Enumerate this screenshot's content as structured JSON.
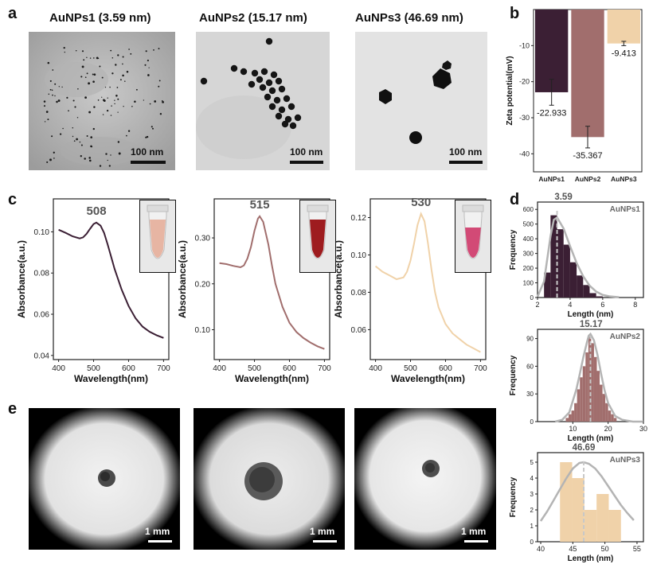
{
  "letters": {
    "a": "a",
    "b": "b",
    "c": "c",
    "d": "d",
    "e": "e"
  },
  "tem": [
    {
      "title": "AuNPs1 (3.59 nm)",
      "scale": "100 nm"
    },
    {
      "title": "AuNPs2 (15.17 nm)",
      "scale": "100 nm"
    },
    {
      "title": "AuNPs3 (46.69 nm)",
      "scale": "100 nm"
    }
  ],
  "dishes": [
    {
      "scale": "1 mm"
    },
    {
      "scale": "1 mm"
    },
    {
      "scale": "1 mm"
    }
  ],
  "colors": {
    "AuNPs1": "#3b1f34",
    "AuNPs2": "#a16e6d",
    "AuNPs3": "#f0d2a9",
    "fit_curve": "#b4b4b4"
  },
  "chart_data": [
    {
      "id": "zeta",
      "type": "bar",
      "ylabel": "Zeta potential(mV)",
      "categories": [
        "AuNPs1",
        "AuNPs2",
        "AuNPs3"
      ],
      "values": [
        -22.933,
        -35.367,
        -9.413
      ],
      "errors": [
        3.6,
        3.0,
        0.6
      ],
      "value_labels": [
        "-22.933",
        "-35.367",
        "-9.413"
      ],
      "ylim": [
        -45,
        0
      ],
      "yticks": [
        -10,
        -20,
        -30,
        -40
      ],
      "ytick_labels": [
        "-10",
        "-20",
        "-30",
        "-40"
      ]
    },
    {
      "id": "uv1",
      "type": "line",
      "xlabel": "Wavelength(nm)",
      "ylabel": "Absorbance(a.u.)",
      "peak_label": "508",
      "peak": [
        508,
        0.1045
      ],
      "xlim": [
        385,
        715
      ],
      "ylim": [
        0.038,
        0.116
      ],
      "xticks": [
        400,
        500,
        600,
        700
      ],
      "yticks": [
        0.04,
        0.06,
        0.08,
        0.1
      ],
      "ytick_labels": [
        "0.04",
        "0.06",
        "0.08",
        "0.10"
      ],
      "x": [
        400,
        420,
        440,
        460,
        470,
        480,
        490,
        500,
        508,
        520,
        530,
        540,
        550,
        560,
        580,
        600,
        620,
        640,
        660,
        680,
        700
      ],
      "y": [
        0.101,
        0.0995,
        0.0978,
        0.0968,
        0.0973,
        0.099,
        0.1015,
        0.1038,
        0.1045,
        0.103,
        0.0995,
        0.094,
        0.088,
        0.082,
        0.072,
        0.064,
        0.058,
        0.054,
        0.0515,
        0.0498,
        0.0485
      ]
    },
    {
      "id": "uv2",
      "type": "line",
      "xlabel": "Wavelength(nm)",
      "ylabel": "Absorbance(a.u.)",
      "peak_label": "515",
      "peak": [
        515,
        0.347
      ],
      "xlim": [
        385,
        715
      ],
      "ylim": [
        0.035,
        0.385
      ],
      "xticks": [
        400,
        500,
        600,
        700
      ],
      "yticks": [
        0.1,
        0.2,
        0.3
      ],
      "ytick_labels": [
        "0.10",
        "0.20",
        "0.30"
      ],
      "x": [
        400,
        420,
        440,
        460,
        470,
        480,
        490,
        500,
        510,
        515,
        525,
        540,
        550,
        560,
        580,
        600,
        620,
        640,
        660,
        680,
        700
      ],
      "y": [
        0.245,
        0.243,
        0.239,
        0.236,
        0.24,
        0.255,
        0.28,
        0.315,
        0.342,
        0.347,
        0.335,
        0.285,
        0.24,
        0.2,
        0.15,
        0.115,
        0.095,
        0.082,
        0.072,
        0.064,
        0.058
      ]
    },
    {
      "id": "uv3",
      "type": "line",
      "xlabel": "Wavelength(nm)",
      "ylabel": "Absorbance(a.u.)",
      "peak_label": "530",
      "peak": [
        530,
        0.122
      ],
      "xlim": [
        385,
        715
      ],
      "ylim": [
        0.044,
        0.13
      ],
      "xticks": [
        400,
        500,
        600,
        700
      ],
      "yticks": [
        0.06,
        0.08,
        0.1,
        0.12
      ],
      "ytick_labels": [
        "0.06",
        "0.08",
        "0.10",
        "0.12"
      ],
      "x": [
        400,
        420,
        440,
        460,
        480,
        490,
        500,
        510,
        520,
        530,
        540,
        550,
        560,
        570,
        580,
        600,
        620,
        640,
        660,
        680,
        700
      ],
      "y": [
        0.094,
        0.091,
        0.089,
        0.087,
        0.088,
        0.091,
        0.097,
        0.106,
        0.116,
        0.122,
        0.118,
        0.106,
        0.092,
        0.08,
        0.072,
        0.063,
        0.058,
        0.055,
        0.052,
        0.05,
        0.048
      ]
    },
    {
      "id": "hist1",
      "type": "bar",
      "xlabel": "Length (nm)",
      "ylabel": "Frequency",
      "legend": "AuNPs1",
      "mean_label": "3.59",
      "mean": 3.59,
      "median": 3.2,
      "xlim": [
        2,
        8.5
      ],
      "ylim": [
        0,
        650
      ],
      "xticks": [
        2,
        4,
        6,
        8
      ],
      "yticks": [
        0,
        100,
        200,
        300,
        400,
        500,
        600
      ],
      "bin_width": 0.4,
      "bins": [
        2.4,
        2.8,
        3.2,
        3.6,
        4.0,
        4.4,
        4.8,
        5.2,
        5.6
      ],
      "counts": [
        170,
        560,
        465,
        360,
        240,
        150,
        85,
        30,
        8
      ],
      "fit": {
        "x": [
          2.0,
          2.4,
          2.8,
          3.0,
          3.2,
          3.6,
          4.0,
          4.4,
          4.8,
          5.2,
          5.6,
          6.0,
          6.4,
          7.0
        ],
        "y": [
          5,
          110,
          420,
          530,
          545,
          470,
          350,
          235,
          145,
          80,
          40,
          18,
          8,
          2
        ]
      }
    },
    {
      "id": "hist2",
      "type": "bar",
      "xlabel": "Length (nm)",
      "ylabel": "Frequency",
      "legend": "AuNPs2",
      "mean_label": "15.17",
      "mean": 15.17,
      "median": 15.0,
      "xlim": [
        0,
        30
      ],
      "ylim": [
        0,
        100
      ],
      "xticks": [
        10,
        20,
        30
      ],
      "yticks": [
        0,
        30,
        60,
        90
      ],
      "bin_width": 0.8,
      "bins": [
        8.0,
        8.8,
        9.6,
        10.4,
        11.2,
        12.0,
        12.8,
        13.6,
        14.4,
        15.2,
        16.0,
        16.8,
        17.6,
        18.4,
        19.2,
        20.0,
        20.8,
        21.6
      ],
      "counts": [
        4,
        8,
        12,
        20,
        35,
        48,
        60,
        75,
        92,
        85,
        70,
        55,
        40,
        30,
        20,
        12,
        8,
        4
      ],
      "fit": {
        "x": [
          5,
          7,
          9,
          11,
          12,
          13,
          14,
          14.5,
          15,
          16,
          17,
          18,
          19,
          20,
          22,
          24,
          27,
          30
        ],
        "y": [
          0,
          2,
          10,
          35,
          52,
          70,
          86,
          93,
          95,
          88,
          72,
          52,
          34,
          20,
          6,
          2,
          0,
          0
        ]
      }
    },
    {
      "id": "hist3",
      "type": "bar",
      "xlabel": "Length (nm)",
      "ylabel": "Frequency",
      "legend": "AuNPs3",
      "mean_label": "46.69",
      "mean": 46.69,
      "median": 46.7,
      "xlim": [
        39.5,
        56
      ],
      "ylim": [
        0,
        5.6
      ],
      "xticks": [
        40,
        45,
        50,
        55
      ],
      "yticks": [
        0,
        1,
        2,
        3,
        4,
        5
      ],
      "bin_width": 1.9,
      "bins": [
        43.0,
        44.9,
        46.8,
        48.7,
        50.6
      ],
      "counts": [
        5,
        4,
        2,
        3,
        2
      ],
      "fit": {
        "x": [
          40,
          41,
          42,
          43,
          44,
          45,
          46,
          46.7,
          47.5,
          48.5,
          49.5,
          50.5,
          51.5,
          52.5,
          53.5,
          54.5
        ],
        "y": [
          1.3,
          1.9,
          2.6,
          3.3,
          4.0,
          4.6,
          4.95,
          5.0,
          4.9,
          4.6,
          4.1,
          3.5,
          2.9,
          2.3,
          1.8,
          1.35
        ]
      }
    }
  ]
}
